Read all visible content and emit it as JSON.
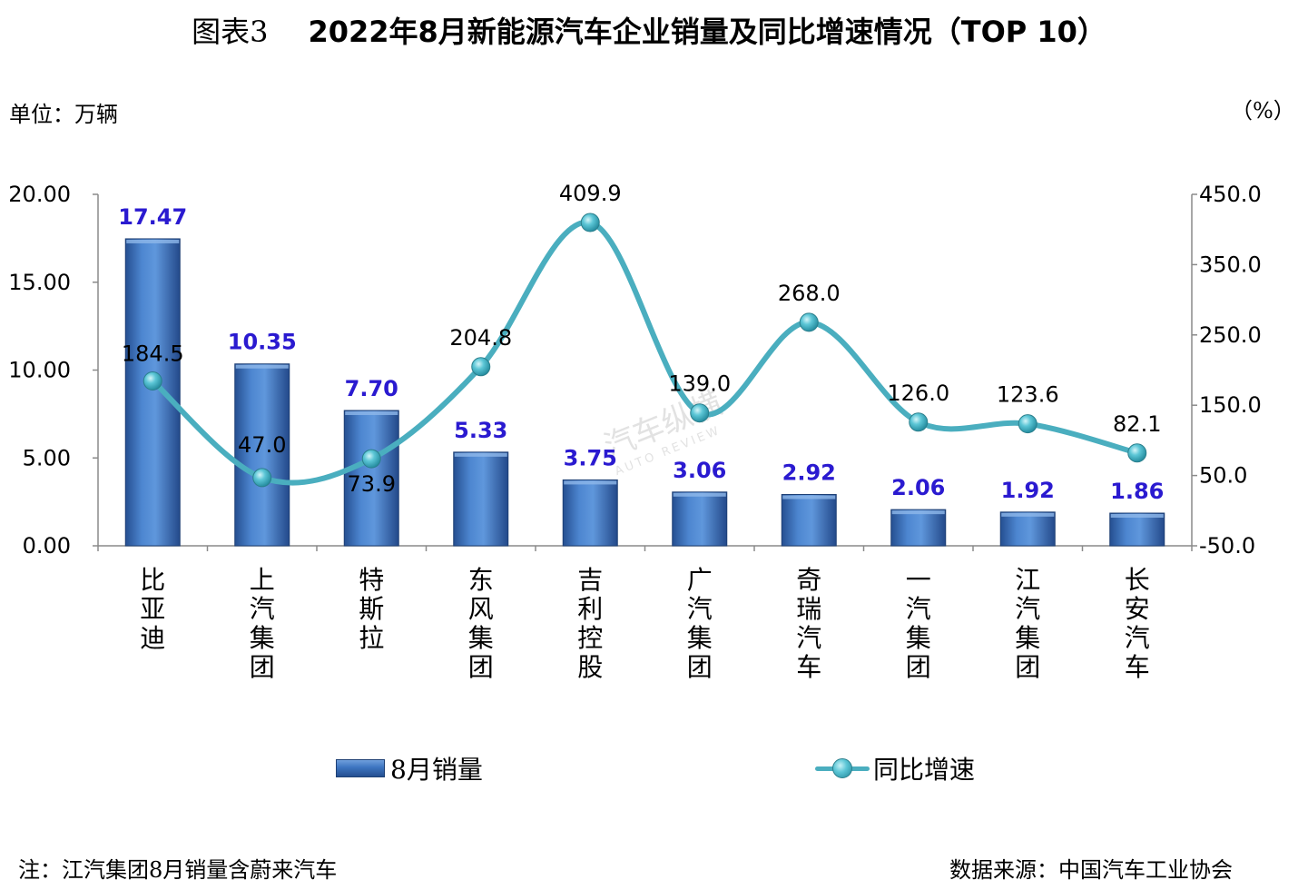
{
  "title": {
    "label": "图表3",
    "text": "2022年8月新能源汽车企业销量及同比增速情况（TOP 10）"
  },
  "units": {
    "left": "单位：万辆",
    "right": "（%）"
  },
  "note": "注：江汽集团8月销量含蔚来汽车",
  "source": "数据来源：中国汽车工业协会",
  "watermark": {
    "main": "汽车纵横",
    "sub": "AUTO REVIEW"
  },
  "colors": {
    "bar_label": "#2a1ad0",
    "line": "#4aaebf",
    "bar": "#3c74c0"
  },
  "chart_data": {
    "type": "bar+line",
    "categories": [
      "比亚迪",
      "上汽集团",
      "特斯拉",
      "东风集团",
      "吉利控股",
      "广汽集团",
      "奇瑞汽车",
      "一汽集团",
      "江汽集团",
      "长安汽车"
    ],
    "series": [
      {
        "name": "8月销量",
        "type": "bar",
        "axis": "left",
        "values": [
          17.47,
          10.35,
          7.7,
          5.33,
          3.75,
          3.06,
          2.92,
          2.06,
          1.92,
          1.86
        ],
        "labels": [
          "17.47",
          "10.35",
          "7.70",
          "5.33",
          "3.75",
          "3.06",
          "2.92",
          "2.06",
          "1.92",
          "1.86"
        ]
      },
      {
        "name": "同比增速",
        "type": "line",
        "axis": "right",
        "values": [
          184.5,
          47.0,
          73.9,
          204.8,
          409.9,
          139.0,
          268.0,
          126.0,
          123.6,
          82.1
        ],
        "labels": [
          "184.5",
          "47.0",
          "73.9",
          "204.8",
          "409.9",
          "139.0",
          "268.0",
          "126.0",
          "123.6",
          "82.1"
        ]
      }
    ],
    "y_left": {
      "range": [
        0,
        20
      ],
      "ticks": [
        "0.00",
        "5.00",
        "10.00",
        "15.00",
        "20.00"
      ]
    },
    "y_right": {
      "range": [
        -50,
        450
      ],
      "ticks": [
        "-50.0",
        "50.0",
        "150.0",
        "250.0",
        "350.0",
        "450.0"
      ]
    },
    "legend": "bottom",
    "grid": false
  }
}
